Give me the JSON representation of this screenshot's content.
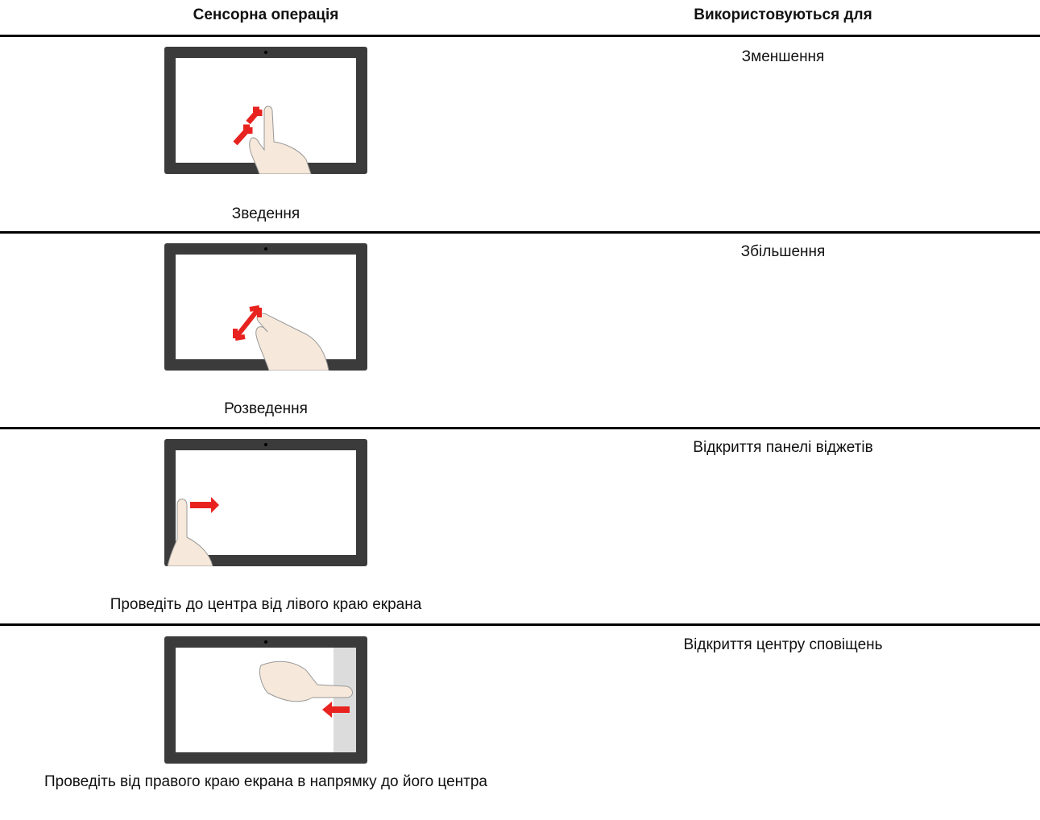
{
  "table": {
    "header": [
      "Сенсорна операція",
      "Використовуються для"
    ],
    "rows": [
      [
        "Зведення",
        "Зменшення"
      ],
      [
        "Розведення",
        "Збільшення"
      ],
      [
        "Проведіть до центра від лівого краю екрана",
        "Відкриття панелі віджетів"
      ],
      [
        "Проведіть від правого краю екрана в напрямку до його центра",
        "Відкриття центру сповіщень"
      ]
    ]
  }
}
